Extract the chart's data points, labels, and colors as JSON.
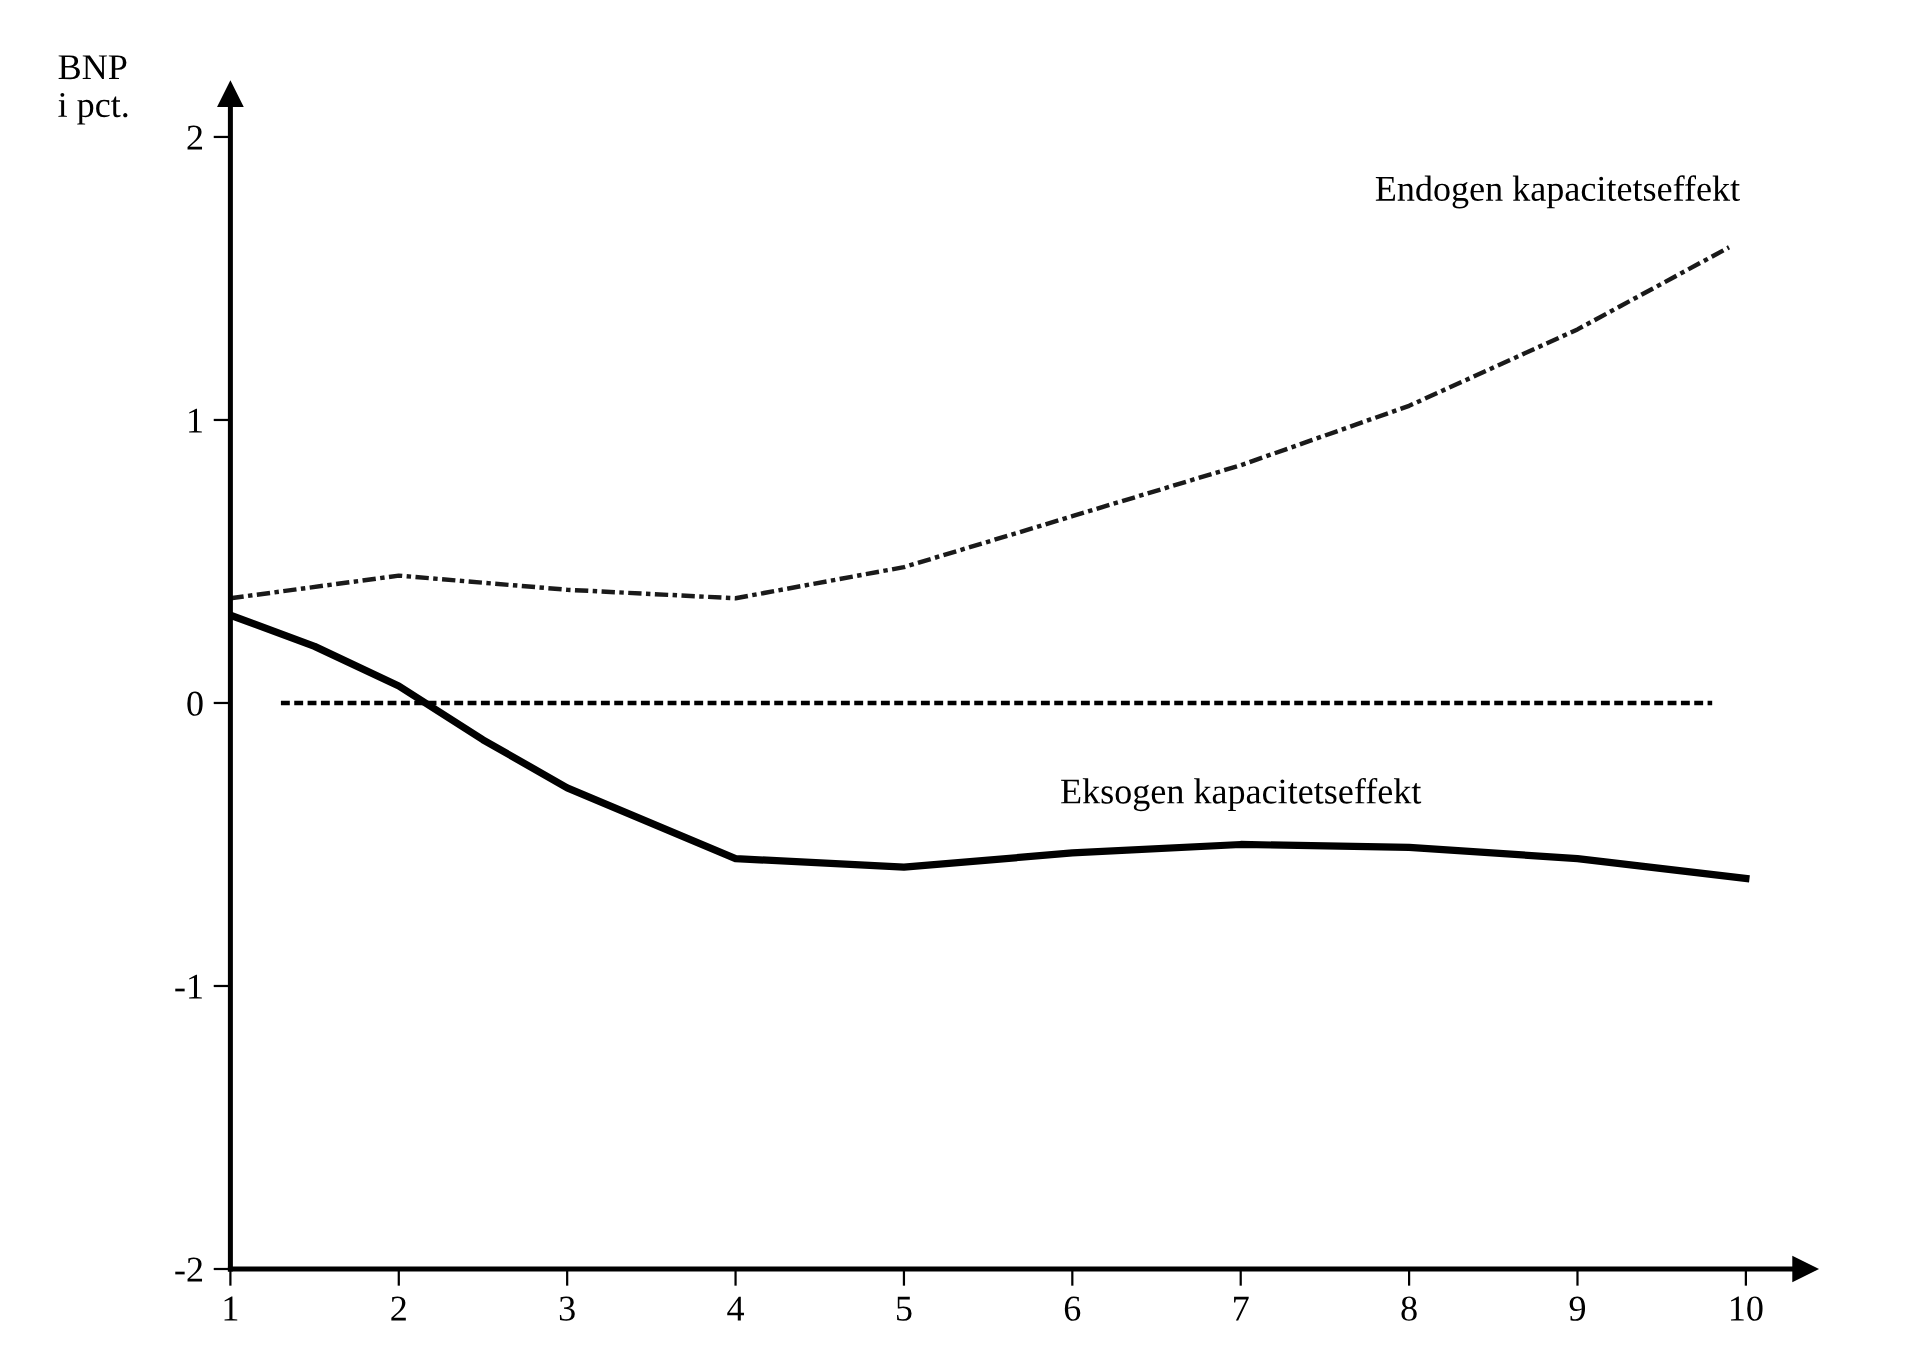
{
  "chart_data": {
    "type": "line",
    "ylabel": "BNP\ni pct.",
    "xlim": [
      1,
      10.35
    ],
    "ylim": [
      -2,
      2.15
    ],
    "xticks": [
      1,
      2,
      3,
      4,
      5,
      6,
      7,
      8,
      9,
      10
    ],
    "yticks": [
      -2,
      -1,
      0,
      1,
      2
    ],
    "grid": false,
    "legend": false,
    "marker": "none",
    "series": [
      {
        "name": "Endogen kapacitetseffekt",
        "color": "#1a1a1a",
        "line_style": "dotted",
        "x": [
          1,
          2,
          3,
          4,
          5,
          6,
          7,
          8,
          9,
          9.9
        ],
        "values": [
          0.37,
          0.45,
          0.4,
          0.37,
          0.48,
          0.66,
          0.84,
          1.05,
          1.32,
          1.61
        ]
      },
      {
        "name": "Eksogen kapacitetseffekt",
        "color": "#000000",
        "line_style": "solid",
        "x": [
          1,
          1.5,
          2,
          2.5,
          3,
          4,
          5,
          6,
          7,
          8,
          9,
          10
        ],
        "values": [
          0.31,
          0.2,
          0.06,
          -0.13,
          -0.3,
          -0.55,
          -0.58,
          -0.53,
          -0.5,
          -0.51,
          -0.55,
          -0.62
        ]
      },
      {
        "color": "#000000",
        "line_style": "dashed",
        "x": [
          1.3,
          9.8
        ],
        "values": [
          0,
          0
        ]
      }
    ]
  }
}
